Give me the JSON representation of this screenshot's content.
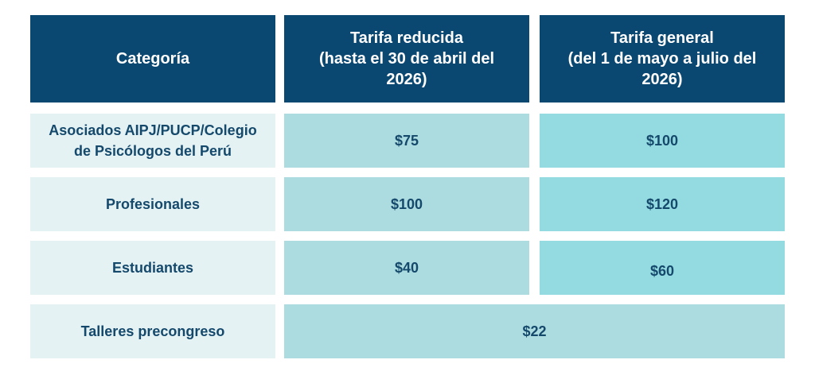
{
  "header": {
    "category_label": "Categoría",
    "reduced_rate_label": "Tarifa reducida\n(hasta el 30 de abril del\n2026)",
    "general_rate_label": "Tarifa general\n(del 1 de mayo a julio del\n2026)"
  },
  "rows": [
    {
      "category": "Asociados AIPJ/PUCP/Colegio\nde Psicólogos del Perú",
      "reduced": "$75",
      "general": "$100"
    },
    {
      "category": "Profesionales",
      "reduced": "$100",
      "general": "$120"
    },
    {
      "category": "Estudiantes",
      "reduced": "$40",
      "general": "$60"
    }
  ],
  "workshops": {
    "category": "Talleres precongreso",
    "price": "$22"
  },
  "colors": {
    "header_bg": "#0a4872",
    "category_bg": "#e4f2f4",
    "reduced_bg": "#acdce0",
    "general_bg": "#94dbe1",
    "text_dark": "#15496c"
  }
}
